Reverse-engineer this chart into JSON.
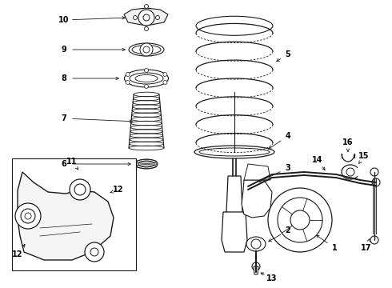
{
  "bg_color": "#ffffff",
  "fig_width": 4.9,
  "fig_height": 3.6,
  "dpi": 100,
  "line_color": "#1a1a1a",
  "label_color": "#000000",
  "label_fontsize": 7.0,
  "arrow_lw": 0.6,
  "part_lw": 0.7
}
